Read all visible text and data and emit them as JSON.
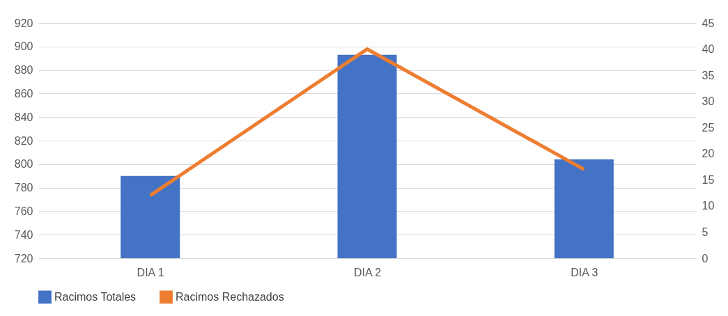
{
  "chart_data": {
    "type": "bar",
    "categories": [
      "DIA 1",
      "DIA 2",
      "DIA 3"
    ],
    "series": [
      {
        "name": "Racimos Totales",
        "color": "#4472c4",
        "values": [
          790,
          893,
          804
        ]
      },
      {
        "name": "Racimos Rechazados",
        "type": "line",
        "axis": "y2",
        "color": "#ed7d31",
        "values": [
          12,
          40,
          17
        ]
      }
    ],
    "ylim": [
      720,
      920
    ],
    "yticks": [
      720,
      740,
      760,
      780,
      800,
      820,
      840,
      860,
      880,
      900,
      920
    ],
    "y2lim": [
      0,
      45
    ],
    "y2ticks": [
      0,
      5,
      10,
      15,
      20,
      25,
      30,
      35,
      40,
      45
    ],
    "grid": "y",
    "legend": "bottom",
    "marker": "none",
    "line_style": "solid"
  }
}
